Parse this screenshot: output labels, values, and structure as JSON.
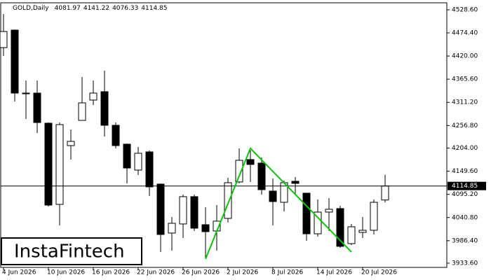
{
  "chart_data": {
    "type": "candlestick",
    "title": "GOLD,Daily",
    "watermark": "InstaFintech",
    "categories": [
      "4 Jun 2026",
      null,
      null,
      null,
      "10 Jun 2026",
      null,
      null,
      null,
      "16 Jun 2026",
      null,
      null,
      null,
      "22 Jun 2026",
      null,
      null,
      null,
      "26 Jun 2026",
      null,
      null,
      null,
      "2 Jul 2026",
      null,
      null,
      null,
      "8 Jul 2026",
      null,
      null,
      null,
      "14 Jul 2026",
      null,
      null,
      null,
      "20 Jul 2026",
      null,
      null
    ],
    "open": [
      4439.8,
      4480.9,
      4333.0,
      4333.0,
      4262.3,
      4071.7,
      4209.7,
      4268.9,
      4316.6,
      4336.3,
      4257.4,
      4213.0,
      4152.2,
      4194.9,
      4119.3,
      4004.3,
      4025.7,
      4089.8,
      4024.0,
      4009.2,
      4038.8,
      4124.3,
      4176.9,
      4168.6,
      4102.9,
      4076.6,
      4125.9,
      4098.0,
      4002.6,
      4053.6,
      4061.8,
      3979.6,
      4005.9,
      4010.9,
      4081.97
    ],
    "high": [
      4518.7,
      4482.6,
      4362.6,
      4362.6,
      4263.9,
      4263.9,
      4247.5,
      4370.8,
      4362.6,
      4385.6,
      4263.9,
      4214.7,
      4206.5,
      4198.2,
      4121.0,
      4042.1,
      4094.7,
      4094.7,
      4065.1,
      4070.0,
      4134.1,
      4203.2,
      4198.2,
      4181.8,
      4132.5,
      4127.6,
      4135.8,
      4098.0,
      4083.2,
      4086.5,
      4068.4,
      4025.7,
      4042.1,
      4083.2,
      4141.22
    ],
    "low": [
      4420.1,
      4313.3,
      4272.2,
      4239.3,
      4066.7,
      4022.4,
      4176.9,
      4268.9,
      4305.1,
      4231.1,
      4203.2,
      4121.0,
      4140.7,
      4091.4,
      3959.9,
      3963.2,
      3992.8,
      4009.2,
      3946.7,
      3963.2,
      4029.0,
      4121.0,
      4124.3,
      4094.7,
      4022.4,
      4055.2,
      4094.7,
      3986.2,
      3996.1,
      4009.2,
      3969.8,
      3976.3,
      3992.8,
      4001.0,
      4076.33
    ],
    "close": [
      4477.6,
      4333.0,
      4331.4,
      4263.9,
      4070.0,
      4259.0,
      4219.6,
      4310.0,
      4333.0,
      4257.4,
      4209.7,
      4157.1,
      4191.7,
      4112.8,
      4001.0,
      4027.3,
      4089.8,
      4015.8,
      4007.6,
      4032.3,
      4122.6,
      4175.2,
      4165.4,
      4106.2,
      4078.3,
      4122.6,
      4121.0,
      4002.6,
      4053.6,
      4060.2,
      3973.1,
      4019.1,
      4010.9,
      4076.6,
      4114.85
    ],
    "up_color": "#ffffff",
    "down_color": "#000000",
    "pattern_color": "#00cc00",
    "pattern_points": [
      {
        "i": 18,
        "y": 3943.5
      },
      {
        "i": 22,
        "y": 4203.2
      },
      {
        "i": 31,
        "y": 3959.9
      }
    ],
    "ylim": [
      3923.7,
      4545.0
    ],
    "yticks": [
      {
        "value": 4528.6,
        "label": "4528.60"
      },
      {
        "value": 4474.4,
        "label": "4474.40"
      },
      {
        "value": 4420.0,
        "label": "4420.00"
      },
      {
        "value": 4365.6,
        "label": "4365.60"
      },
      {
        "value": 4311.2,
        "label": "4311.20"
      },
      {
        "value": 4256.8,
        "label": "4256.80"
      },
      {
        "value": 4204.0,
        "label": "4204.00"
      },
      {
        "value": 4149.6,
        "label": "4149.60"
      },
      {
        "value": 4095.2,
        "label": "4095.20"
      },
      {
        "value": 4040.8,
        "label": "4040.80"
      },
      {
        "value": 3986.4,
        "label": "3986.40"
      },
      {
        "value": 3933.6,
        "label": "3933.60"
      }
    ]
  }
}
